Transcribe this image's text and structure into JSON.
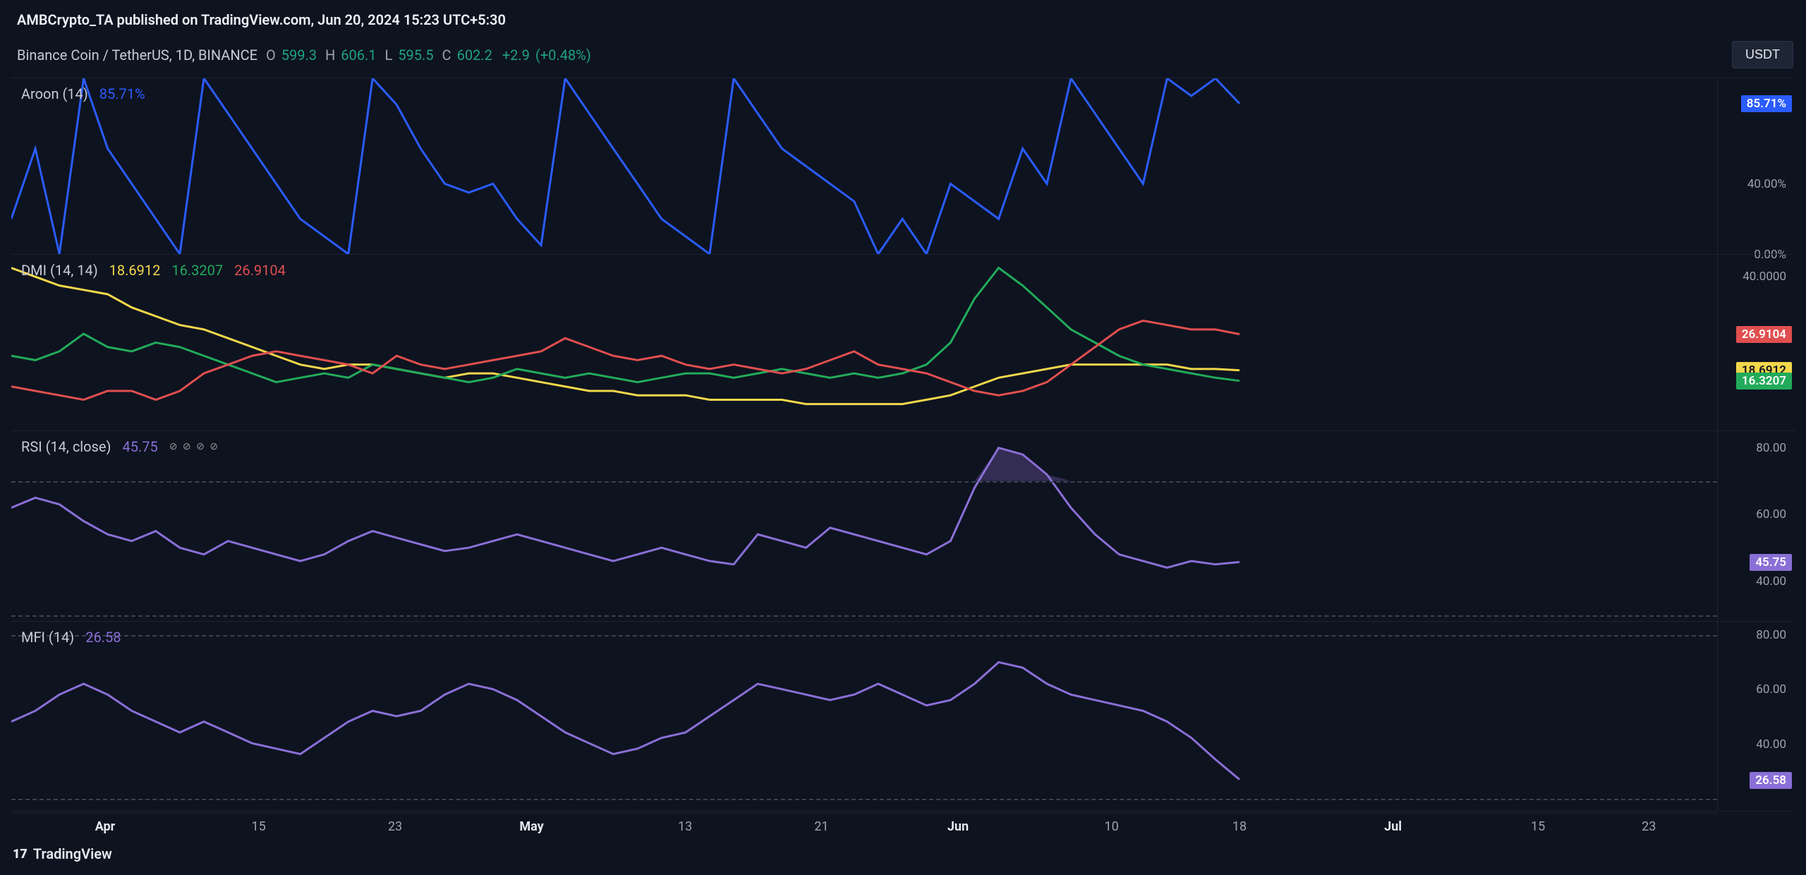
{
  "header": {
    "publisher_line": "AMBCrypto_TA published on TradingView.com, Jun 20, 2024 15:23 UTC+5:30",
    "symbol": "Binance Coin / TetherUS, 1D, BINANCE",
    "ohlc": {
      "o_label": "O",
      "o": "599.3",
      "h_label": "H",
      "h": "606.1",
      "l_label": "L",
      "l": "595.5",
      "c_label": "C",
      "c": "602.2",
      "change": "+2.9",
      "change_pct": "(+0.48%)"
    },
    "ohlc_color": "#19a e",
    "ohlc_green": "#1fa37f",
    "quote_button": "USDT"
  },
  "colors": {
    "bg": "#0e1320",
    "grid": "#1b2232",
    "text": "#c5cbd8",
    "muted": "#9ca2b1",
    "blue": "#2a5cff",
    "yellow": "#f2d74b",
    "green": "#22ab5a",
    "red": "#e04f4f",
    "purple": "#8a6fd6",
    "purple_fill": "#4c3e77",
    "dash": "#3b4257"
  },
  "panels": [
    {
      "id": "aroon",
      "height_pct": 24,
      "legend": {
        "name": "Aroon (14)",
        "values": [
          {
            "text": "85.71%",
            "color": "#2a5cff"
          }
        ]
      },
      "y_axis": {
        "min": 0,
        "max": 100,
        "ticks": [
          {
            "v": 0,
            "label": "0.00%"
          },
          {
            "v": 40,
            "label": "40.00%"
          }
        ]
      },
      "price_tags": [
        {
          "v": 85.71,
          "label": "85.71%",
          "bg": "#2a5cff",
          "fg": "#ffffff"
        }
      ],
      "series": [
        {
          "color": "#2a5cff",
          "width": 3,
          "points": [
            20,
            60,
            0,
            100,
            60,
            40,
            20,
            0,
            100,
            80,
            60,
            40,
            20,
            10,
            0,
            100,
            85,
            60,
            40,
            35,
            40,
            20,
            5,
            100,
            80,
            60,
            40,
            20,
            10,
            0,
            100,
            80,
            60,
            50,
            40,
            30,
            0,
            20,
            0,
            40,
            30,
            20,
            60,
            40,
            100,
            80,
            60,
            40,
            100,
            90,
            100,
            85.7
          ]
        }
      ]
    },
    {
      "id": "dmi",
      "height_pct": 24,
      "legend": {
        "name": "DMI (14, 14)",
        "values": [
          {
            "text": "18.6912",
            "color": "#f2d74b"
          },
          {
            "text": "16.3207",
            "color": "#22ab5a"
          },
          {
            "text": "26.9104",
            "color": "#e04f4f"
          }
        ]
      },
      "y_axis": {
        "min": 5,
        "max": 45,
        "ticks": [
          {
            "v": 40,
            "label": "40.0000"
          }
        ]
      },
      "price_tags": [
        {
          "v": 26.91,
          "label": "26.9104",
          "bg": "#e04f4f",
          "fg": "#ffffff"
        },
        {
          "v": 18.69,
          "label": "18.6912",
          "bg": "#f2d74b",
          "fg": "#0e1320"
        },
        {
          "v": 16.32,
          "label": "16.3207",
          "bg": "#22ab5a",
          "fg": "#ffffff"
        }
      ],
      "series": [
        {
          "color": "#f2d74b",
          "width": 3,
          "points": [
            42,
            40,
            38,
            37,
            36,
            33,
            31,
            29,
            28,
            26,
            24,
            22,
            20,
            19,
            20,
            20,
            19,
            18,
            17,
            18,
            18,
            17,
            16,
            15,
            14,
            14,
            13,
            13,
            13,
            12,
            12,
            12,
            12,
            11,
            11,
            11,
            11,
            11,
            12,
            13,
            15,
            17,
            18,
            19,
            20,
            20,
            20,
            20,
            20,
            19,
            19,
            18.7
          ]
        },
        {
          "color": "#22ab5a",
          "width": 3,
          "points": [
            22,
            21,
            23,
            27,
            24,
            23,
            25,
            24,
            22,
            20,
            18,
            16,
            17,
            18,
            17,
            20,
            19,
            18,
            17,
            16,
            17,
            19,
            18,
            17,
            18,
            17,
            16,
            17,
            18,
            18,
            17,
            18,
            19,
            18,
            17,
            18,
            17,
            18,
            20,
            25,
            35,
            42,
            38,
            33,
            28,
            25,
            22,
            20,
            19,
            18,
            17,
            16.3
          ]
        },
        {
          "color": "#e04f4f",
          "width": 3,
          "points": [
            15,
            14,
            13,
            12,
            14,
            14,
            12,
            14,
            18,
            20,
            22,
            23,
            22,
            21,
            20,
            18,
            22,
            20,
            19,
            20,
            21,
            22,
            23,
            26,
            24,
            22,
            21,
            22,
            20,
            19,
            20,
            19,
            18,
            19,
            21,
            23,
            20,
            19,
            18,
            16,
            14,
            13,
            14,
            16,
            20,
            24,
            28,
            30,
            29,
            28,
            28,
            26.9
          ]
        }
      ]
    },
    {
      "id": "rsi",
      "height_pct": 26,
      "legend": {
        "name": "RSI (14, close)",
        "values": [
          {
            "text": "45.75",
            "color": "#8a6fd6"
          }
        ],
        "badges": "⊘ ⊘ ⊘ ⊘"
      },
      "y_axis": {
        "min": 28,
        "max": 85,
        "ticks": [
          {
            "v": 80,
            "label": "80.00"
          },
          {
            "v": 60,
            "label": "60.00"
          },
          {
            "v": 40,
            "label": "40.00"
          }
        ]
      },
      "bands": [
        70,
        30
      ],
      "fill_above": 70,
      "price_tags": [
        {
          "v": 45.75,
          "label": "45.75",
          "bg": "#8a6fd6",
          "fg": "#ffffff"
        }
      ],
      "series": [
        {
          "color": "#8a6fd6",
          "width": 3,
          "points": [
            62,
            65,
            63,
            58,
            54,
            52,
            55,
            50,
            48,
            52,
            50,
            48,
            46,
            48,
            52,
            55,
            53,
            51,
            49,
            50,
            52,
            54,
            52,
            50,
            48,
            46,
            48,
            50,
            48,
            46,
            45,
            54,
            52,
            50,
            56,
            54,
            52,
            50,
            48,
            52,
            68,
            80,
            78,
            72,
            62,
            54,
            48,
            46,
            44,
            46,
            45,
            45.7
          ]
        }
      ]
    },
    {
      "id": "mfi",
      "height_pct": 26,
      "legend": {
        "name": "MFI (14)",
        "values": [
          {
            "text": "26.58",
            "color": "#8a6fd6"
          }
        ]
      },
      "y_axis": {
        "min": 15,
        "max": 85,
        "ticks": [
          {
            "v": 80,
            "label": "80.00"
          },
          {
            "v": 60,
            "label": "60.00"
          },
          {
            "v": 40,
            "label": "40.00"
          }
        ]
      },
      "bands": [
        80,
        20
      ],
      "price_tags": [
        {
          "v": 26.58,
          "label": "26.58",
          "bg": "#8a6fd6",
          "fg": "#ffffff"
        }
      ],
      "series": [
        {
          "color": "#8a6fd6",
          "width": 3,
          "points": [
            48,
            52,
            58,
            62,
            58,
            52,
            48,
            44,
            48,
            44,
            40,
            38,
            36,
            42,
            48,
            52,
            50,
            52,
            58,
            62,
            60,
            56,
            50,
            44,
            40,
            36,
            38,
            42,
            44,
            50,
            56,
            62,
            60,
            58,
            56,
            58,
            62,
            58,
            54,
            56,
            62,
            70,
            68,
            62,
            58,
            56,
            54,
            52,
            48,
            42,
            34,
            26.6
          ]
        }
      ]
    }
  ],
  "time_axis": {
    "ticks": [
      {
        "pos": 0.055,
        "label": "Apr",
        "bold": true
      },
      {
        "pos": 0.145,
        "label": "15",
        "bold": false
      },
      {
        "pos": 0.225,
        "label": "23",
        "bold": false
      },
      {
        "pos": 0.305,
        "label": "May",
        "bold": true
      },
      {
        "pos": 0.395,
        "label": "13",
        "bold": false
      },
      {
        "pos": 0.475,
        "label": "21",
        "bold": false
      },
      {
        "pos": 0.555,
        "label": "Jun",
        "bold": true
      },
      {
        "pos": 0.645,
        "label": "10",
        "bold": false
      },
      {
        "pos": 0.72,
        "label": "18",
        "bold": false
      },
      {
        "pos": 0.81,
        "label": "Jul",
        "bold": true
      },
      {
        "pos": 0.895,
        "label": "15",
        "bold": false
      },
      {
        "pos": 0.96,
        "label": "23",
        "bold": false
      }
    ]
  },
  "footer": {
    "brand": "TradingView",
    "icon": "17"
  }
}
